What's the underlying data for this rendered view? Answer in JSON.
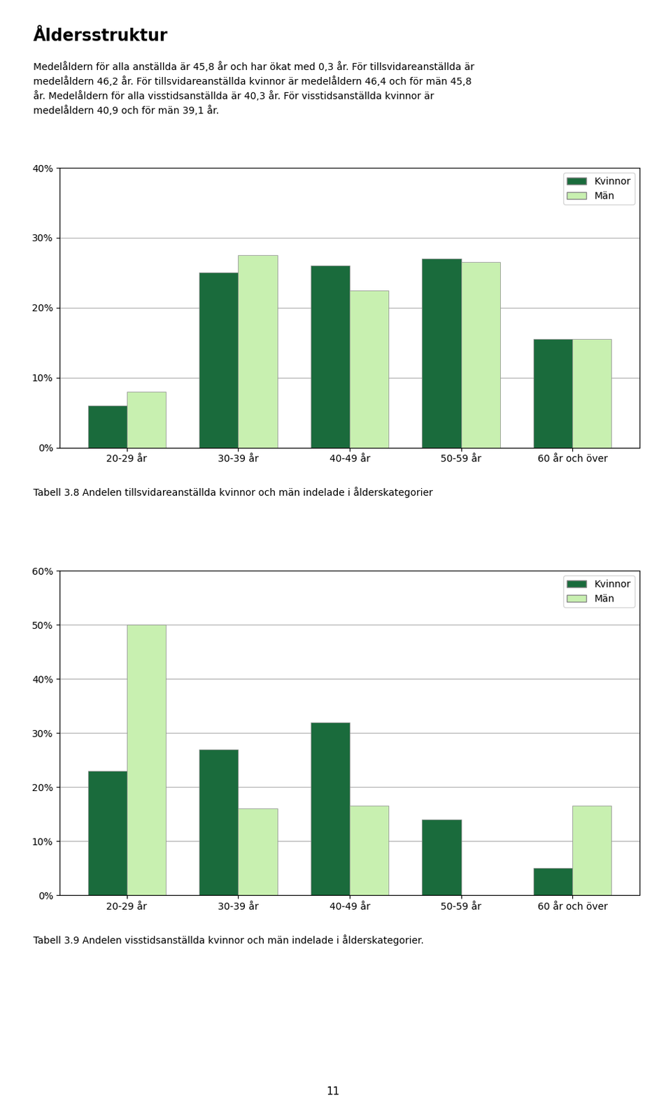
{
  "title": "Åldersstruktur",
  "subtitle": "Medelåldern för alla anställda är 45,8 år och har ökat med 0,3 år. För tillsvidareanställda är\nmedelåldern 46,2 år. För tillsvidareanställda kvinnor är medelåldern 46,4 och för män 45,8\når. Medelåldern för alla visstidsanställda är 40,3 år. För visstidsanställda kvinnor är\nmedelåldern 40,9 och för män 39,1 år.",
  "annotations": [
    "11"
  ],
  "chart_data": [
    {
      "type": "bar",
      "title": "Tabell 3.8 Andelen tillsvidareanställda kvinnor och män indelade i ålderskategorier",
      "categories": [
        "20-29 år",
        "30-39 år",
        "40-49 år",
        "50-59 år",
        "60 år och över"
      ],
      "series": [
        {
          "name": "Kvinnor",
          "color": "#1a6b3c",
          "values": [
            6,
            25,
            26,
            27,
            15.5
          ]
        },
        {
          "name": "Män",
          "color": "#c8f0b0",
          "values": [
            8,
            27.5,
            22.5,
            26.5,
            15.5
          ]
        }
      ],
      "ylim": [
        0,
        40
      ],
      "yticks": [
        {
          "value": 0,
          "label": "0%"
        },
        {
          "value": 10,
          "label": "10%"
        },
        {
          "value": 20,
          "label": "20%"
        },
        {
          "value": 30,
          "label": "30%"
        },
        {
          "value": 40,
          "label": "40%"
        }
      ],
      "grid": true,
      "legend": "upper right"
    },
    {
      "type": "bar",
      "title": "Tabell 3.9 Andelen visstidsanställda kvinnor och män indelade i ålderskategorier.",
      "categories": [
        "20-29 år",
        "30-39 år",
        "40-49 år",
        "50-59 år",
        "60 år och över"
      ],
      "series": [
        {
          "name": "Kvinnor",
          "color": "#1a6b3c",
          "values": [
            23,
            27,
            32,
            14,
            5
          ]
        },
        {
          "name": "Män",
          "color": "#c8f0b0",
          "values": [
            50,
            16,
            16.5,
            0,
            16.5
          ]
        }
      ],
      "ylim": [
        0,
        60
      ],
      "yticks": [
        {
          "value": 0,
          "label": "0%"
        },
        {
          "value": 10,
          "label": "10%"
        },
        {
          "value": 20,
          "label": "20%"
        },
        {
          "value": 30,
          "label": "30%"
        },
        {
          "value": 40,
          "label": "40%"
        },
        {
          "value": 50,
          "label": "50%"
        },
        {
          "value": 60,
          "label": "60%"
        }
      ],
      "grid": true,
      "legend": "upper right"
    }
  ]
}
